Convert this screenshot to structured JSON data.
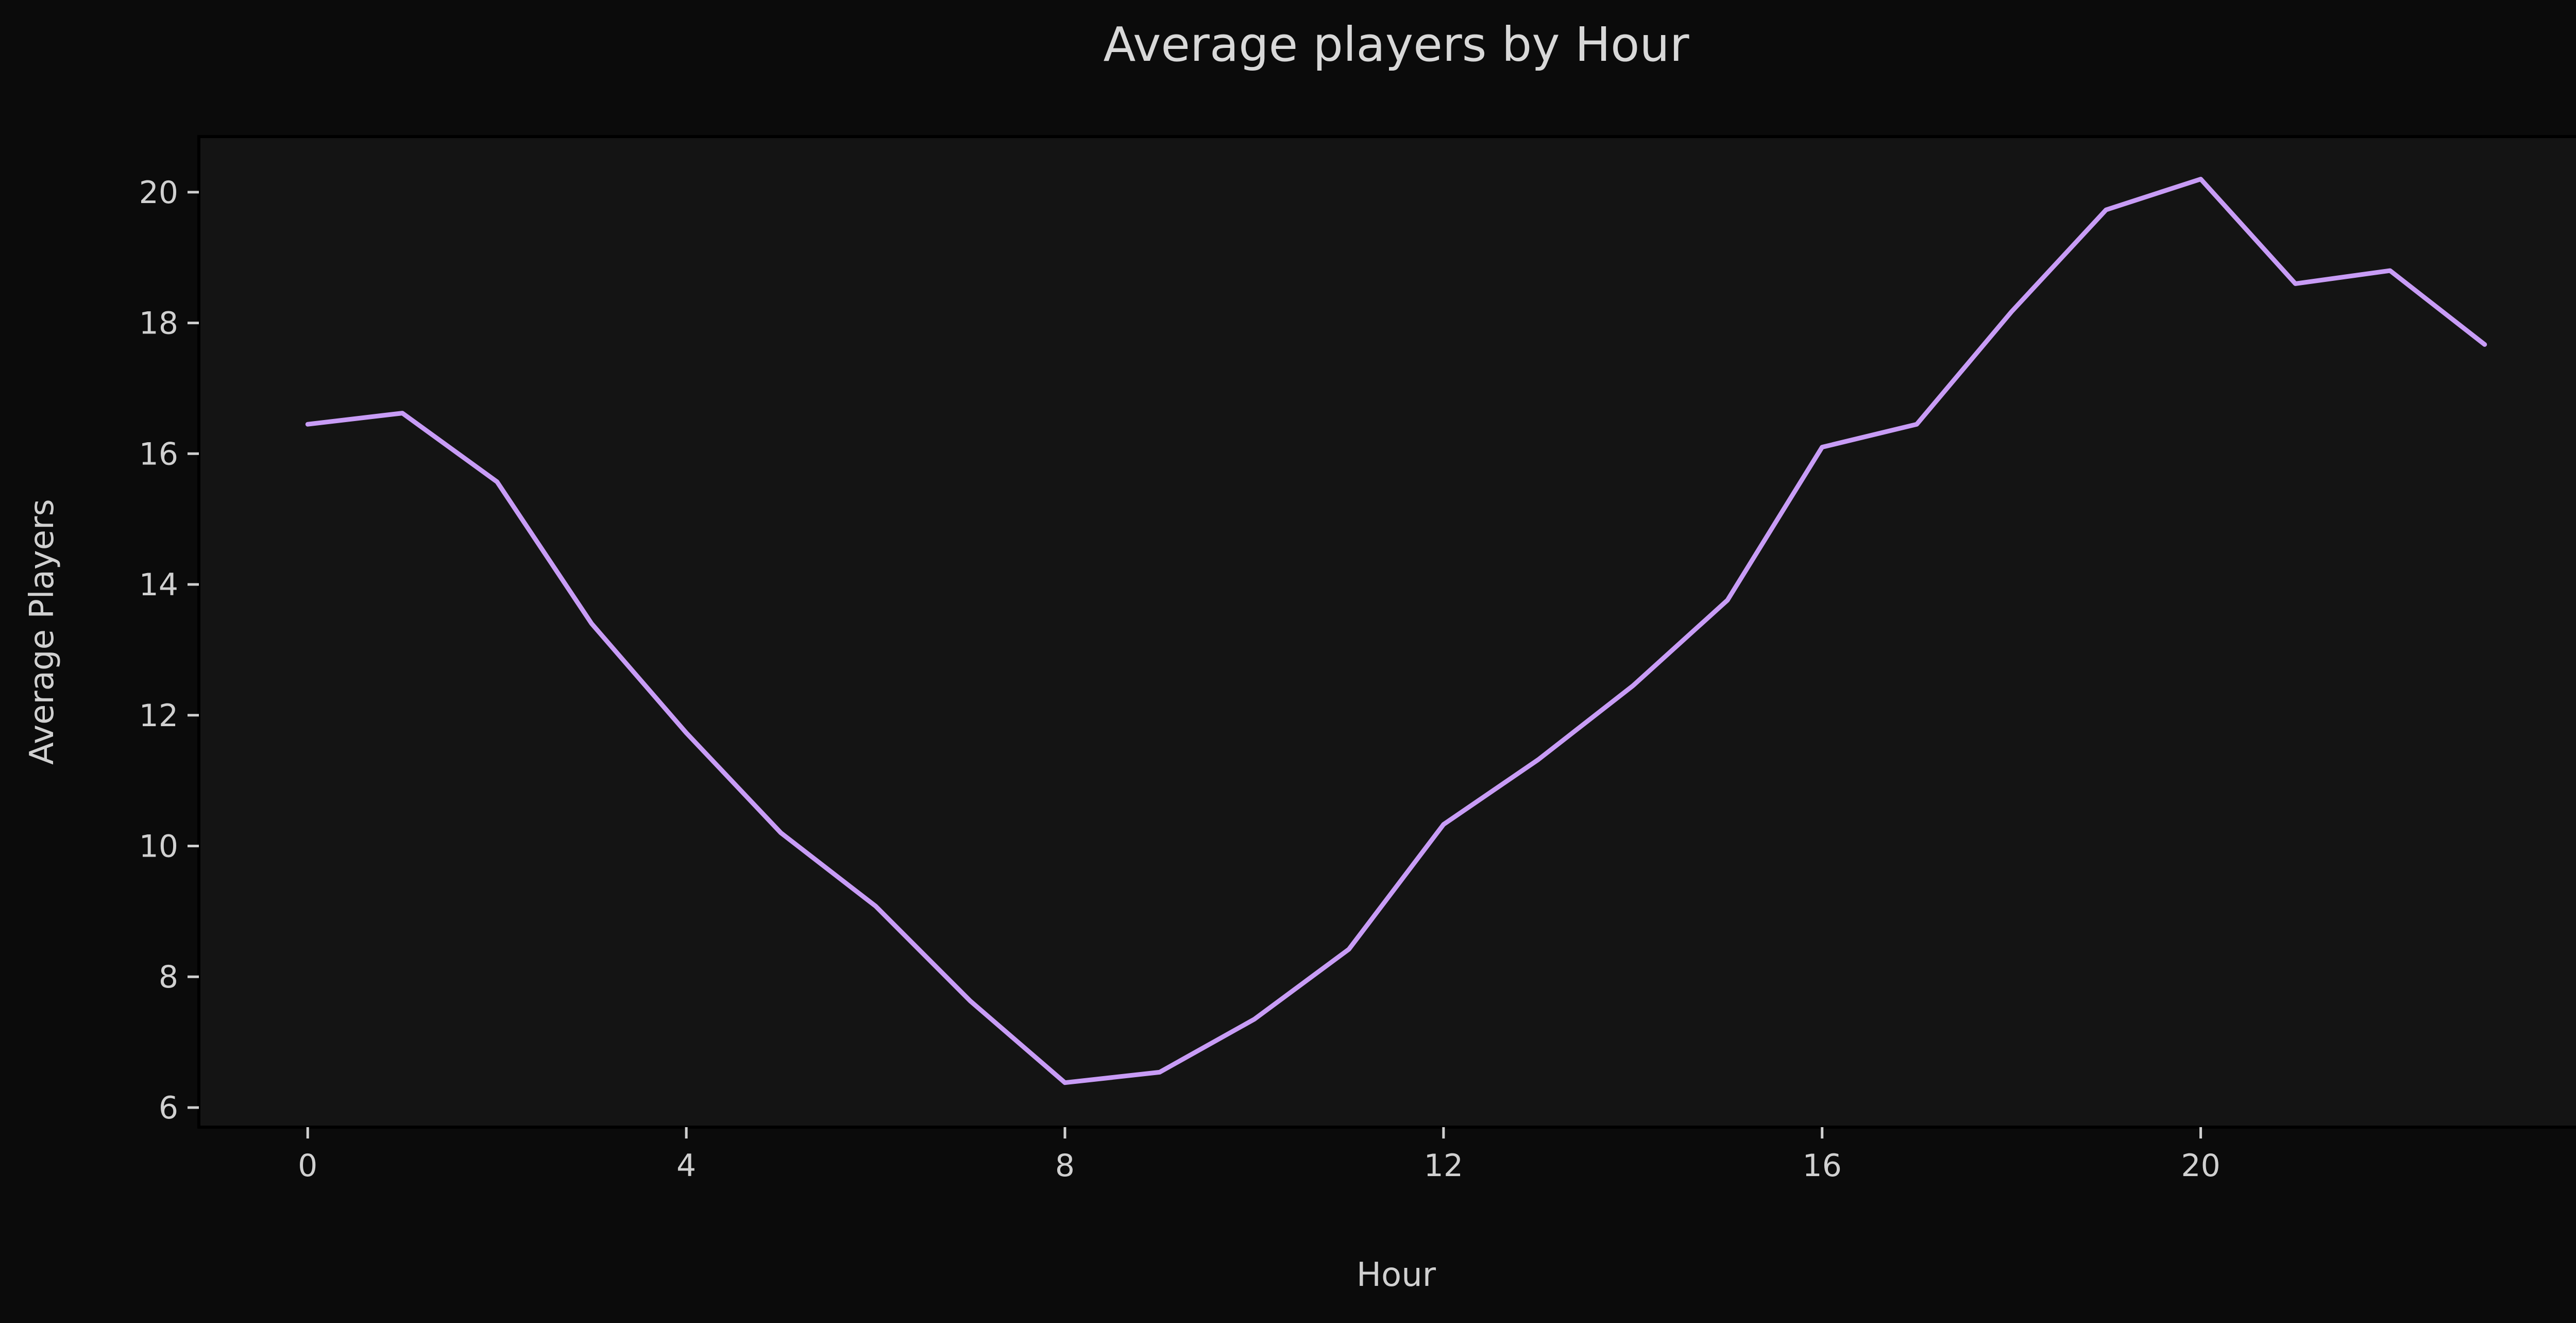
{
  "colors": {
    "background": "#0b0b0b",
    "plot_background": "#141414",
    "line": "#c89cf6",
    "text": "#d0d0d0"
  },
  "chart_data": {
    "type": "line",
    "title": "Average players by Hour",
    "xlabel": "Hour",
    "ylabel": "Average Players",
    "x": [
      0,
      1,
      2,
      3,
      4,
      5,
      6,
      7,
      8,
      9,
      10,
      11,
      12,
      13,
      14,
      15,
      16,
      17,
      18,
      19,
      20,
      21,
      22,
      23
    ],
    "series": [
      {
        "values": [
          16.45,
          16.62,
          15.57,
          13.4,
          11.73,
          10.2,
          9.08,
          7.63,
          6.38,
          6.54,
          7.35,
          8.42,
          10.33,
          11.32,
          12.45,
          13.76,
          16.1,
          16.45,
          18.17,
          19.73,
          20.2,
          18.6,
          18.8,
          17.67
        ]
      }
    ],
    "xlim": [
      -1.15,
      24.15
    ],
    "ylim": [
      5.7,
      20.85
    ],
    "xticks": [
      0,
      4,
      8,
      12,
      16,
      20
    ],
    "yticks": [
      6,
      8,
      10,
      12,
      14,
      16,
      18,
      20
    ],
    "grid": false,
    "legend": "none"
  }
}
